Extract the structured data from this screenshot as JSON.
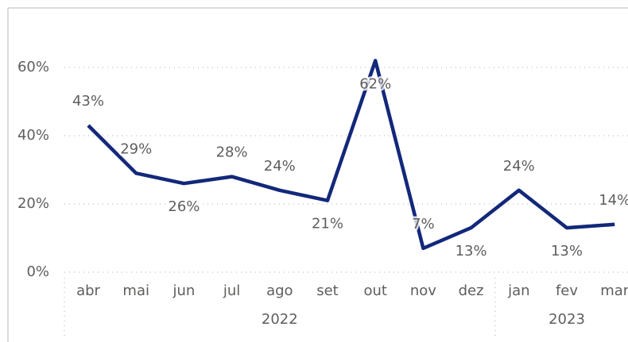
{
  "chart_data": {
    "type": "line",
    "category_groups": [
      {
        "label": "2022",
        "categories": [
          "abr",
          "mai",
          "jun",
          "jul",
          "ago",
          "set",
          "out",
          "nov",
          "dez"
        ]
      },
      {
        "label": "2023",
        "categories": [
          "jan",
          "fev",
          "mar"
        ]
      }
    ],
    "values": [
      43,
      29,
      26,
      28,
      24,
      21,
      62,
      7,
      13,
      24,
      13,
      14
    ],
    "value_labels": [
      "43%",
      "29%",
      "26%",
      "28%",
      "24%",
      "21%",
      "62%",
      "7%",
      "13%",
      "24%",
      "13%",
      "14%"
    ],
    "color": "#12287a",
    "ylim": [
      0,
      70
    ],
    "yticks": [
      {
        "value": 0,
        "label": "0%"
      },
      {
        "value": 20,
        "label": "20%"
      },
      {
        "value": 40,
        "label": "40%"
      },
      {
        "value": 60,
        "label": "60%"
      }
    ],
    "grid": true
  }
}
